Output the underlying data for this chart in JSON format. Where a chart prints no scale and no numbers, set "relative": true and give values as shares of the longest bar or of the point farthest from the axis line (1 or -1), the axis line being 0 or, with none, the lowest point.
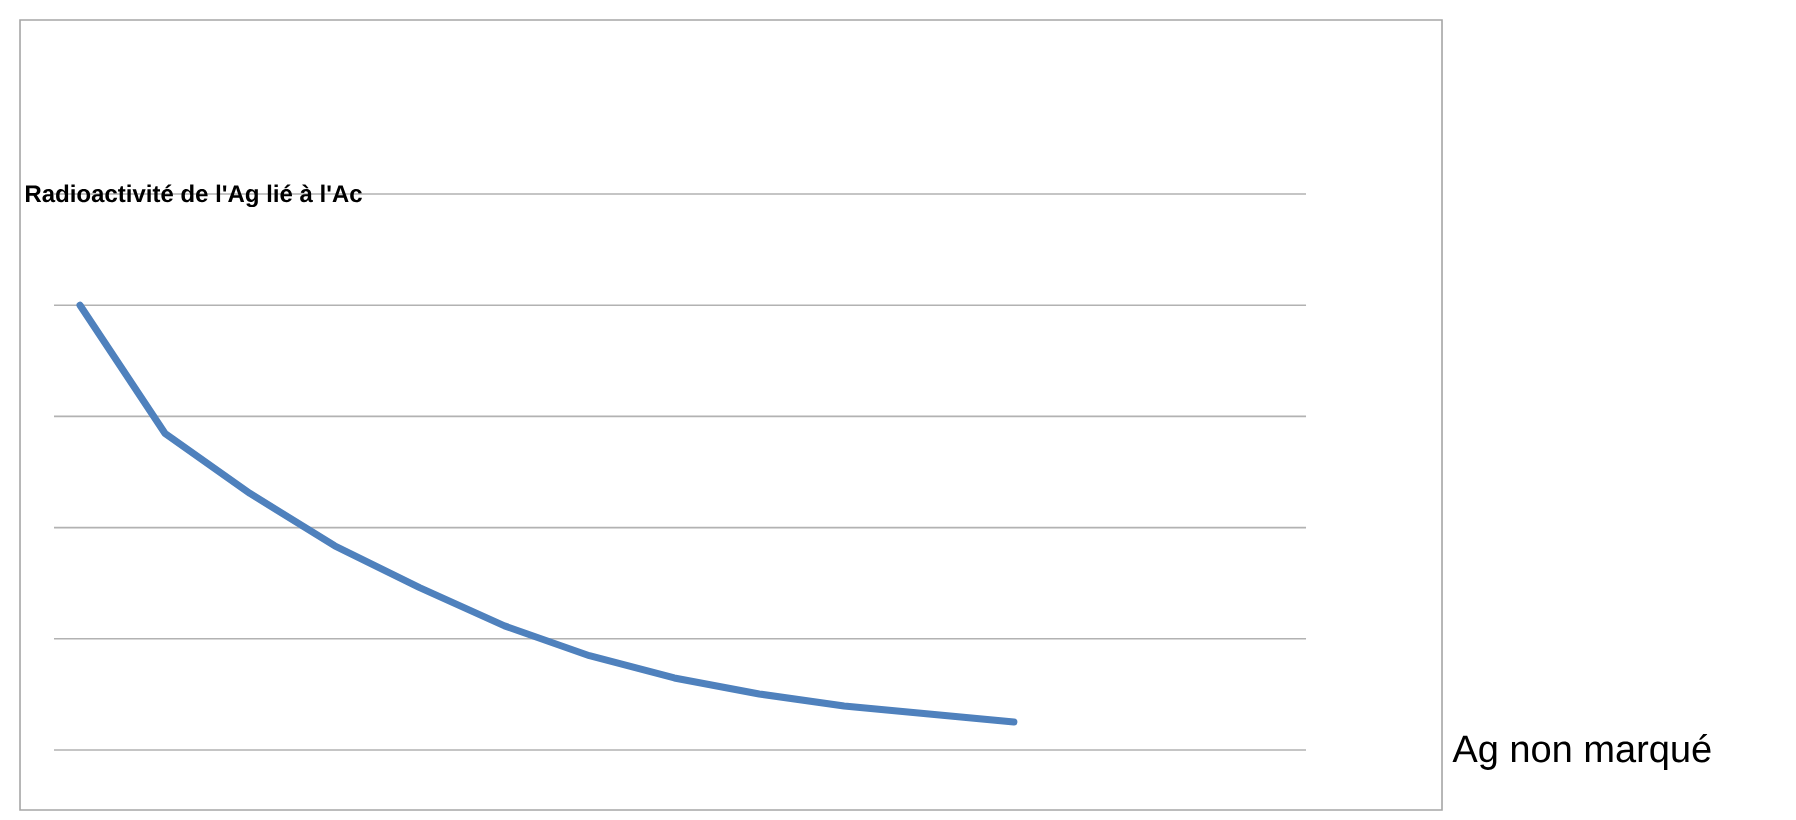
{
  "chart_data": {
    "type": "line",
    "title": "Radioactivité de l'Ag lié à l'Ac",
    "annotations": [
      "Ag non marqué"
    ],
    "categories": [
      null,
      null,
      null,
      null,
      null,
      null,
      null,
      null,
      null,
      null,
      null,
      null
    ],
    "values": [
      1.0,
      0.712,
      0.577,
      0.459,
      0.365,
      0.279,
      0.212,
      0.162,
      0.126,
      0.099,
      0.081,
      0.063
    ],
    "relative": true,
    "color": "#4f81bd",
    "grid": "y",
    "marker": "none",
    "line_style": "solid"
  }
}
